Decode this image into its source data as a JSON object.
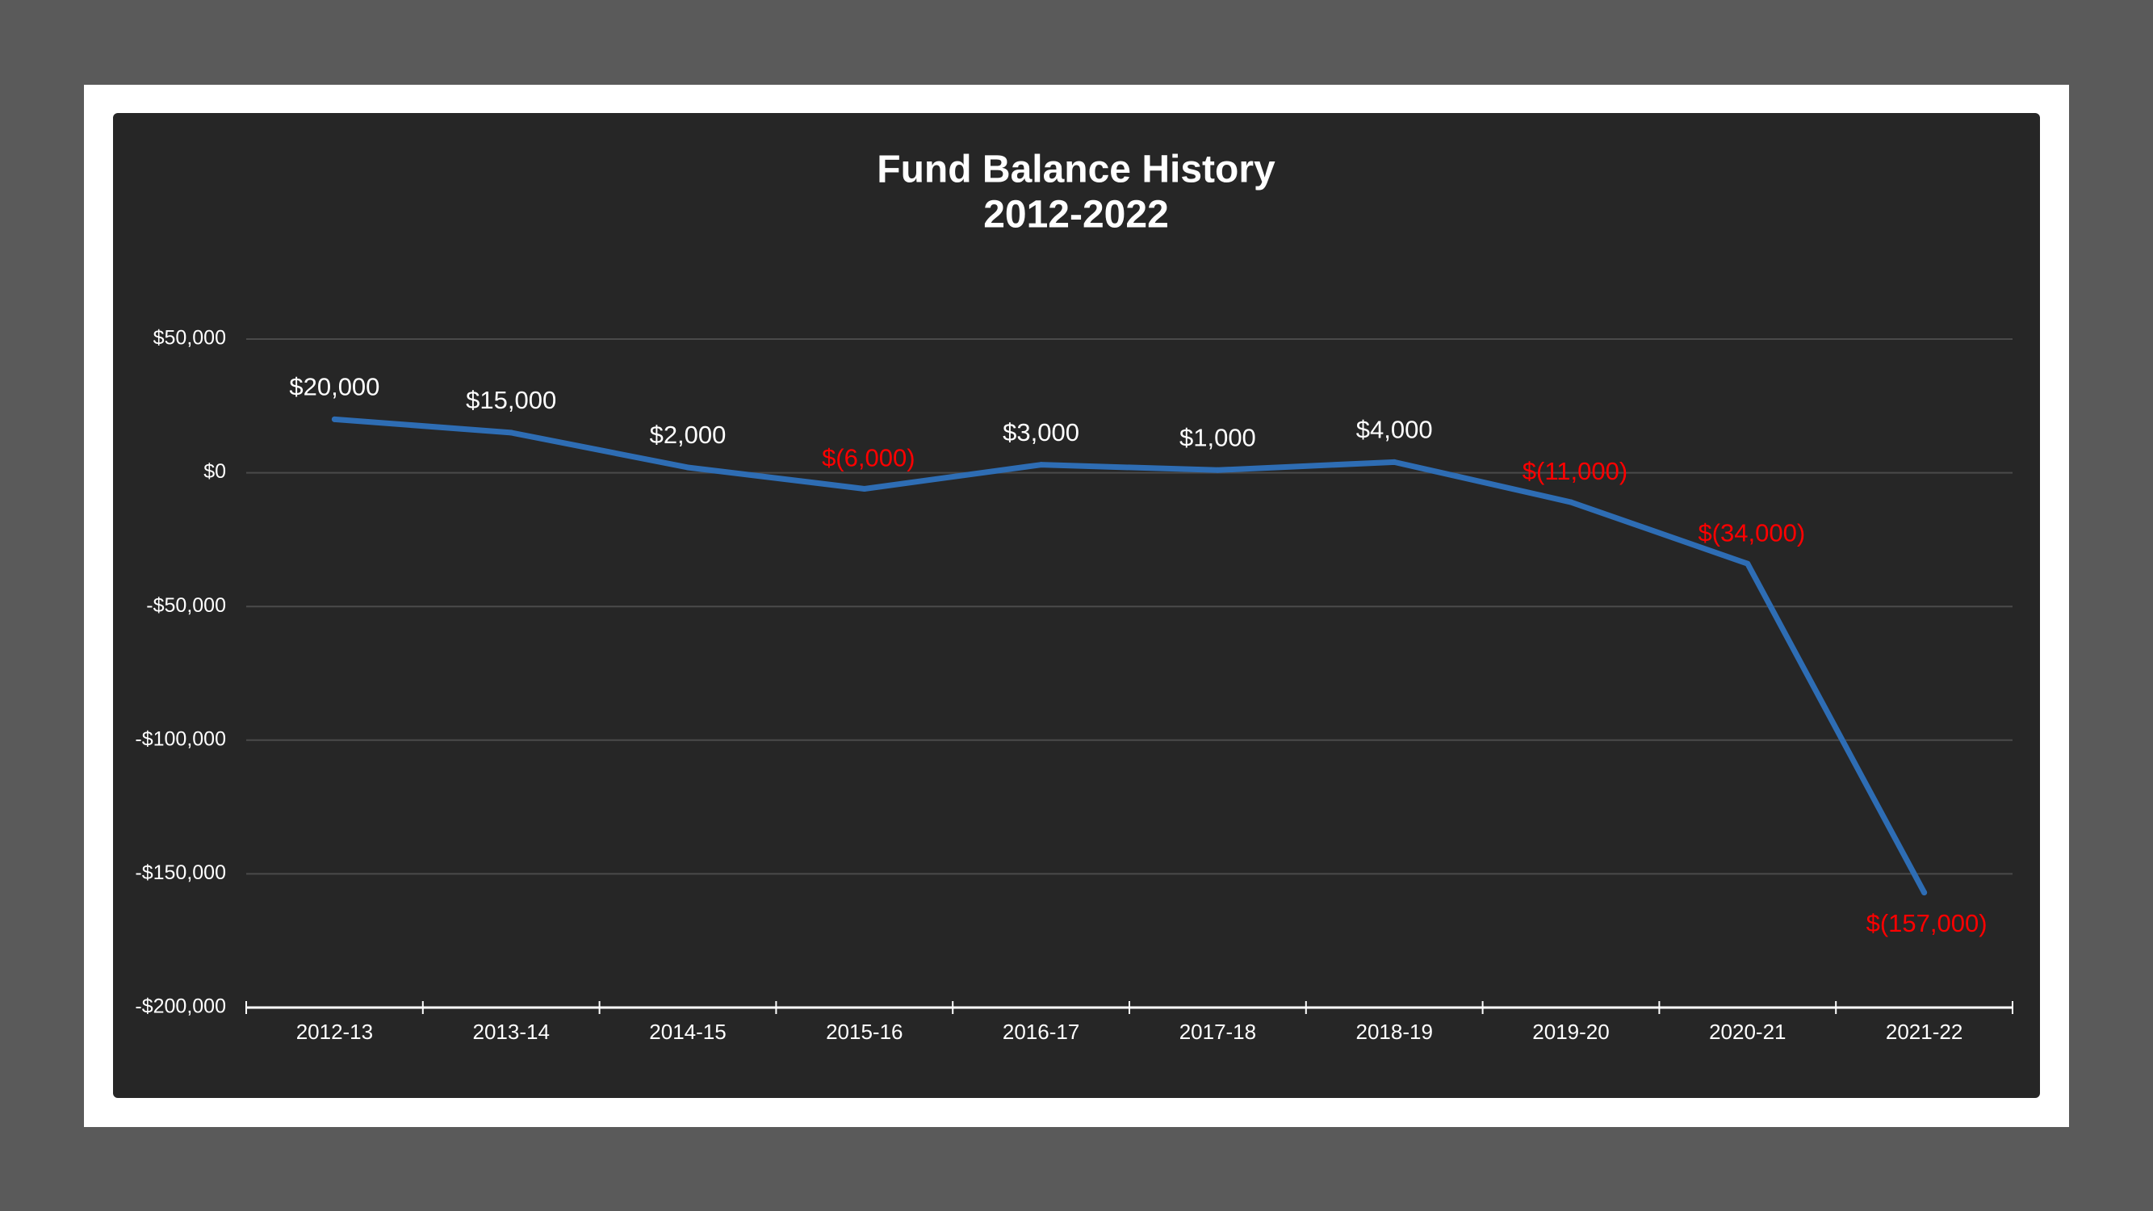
{
  "chart_data": {
    "type": "line",
    "title": [
      "Fund Balance History",
      "2012-2022"
    ],
    "categories": [
      "2012-13",
      "2013-14",
      "2014-15",
      "2015-16",
      "2016-17",
      "2017-18",
      "2018-19",
      "2019-20",
      "2020-21",
      "2021-22"
    ],
    "values": [
      20000,
      15000,
      2000,
      -6000,
      3000,
      1000,
      4000,
      -11000,
      -34000,
      -157000
    ],
    "data_labels": [
      "$20,000",
      "$15,000",
      "$2,000",
      "$(6,000)",
      "$3,000",
      "$1,000",
      "$4,000",
      "$(11,000)",
      "$(34,000)",
      "$(157,000)"
    ],
    "ylim": [
      -200000,
      50000
    ],
    "y_ticks": [
      50000,
      0,
      -50000,
      -100000,
      -150000,
      -200000
    ],
    "y_tick_labels": [
      "$50,000",
      "$0",
      "-$50,000",
      "-$100,000",
      "-$150,000",
      "-$200,000"
    ],
    "xlabel": "",
    "ylabel": "",
    "grid": true,
    "legend": "none",
    "colors": {
      "line": "#2e6db4",
      "positive_label": "#ffffff",
      "negative_label": "#ff0000",
      "gridline": "#4a4a4a",
      "axis": "#ffffff",
      "panel_background": "#262626",
      "frame": "#ffffff",
      "page_background": "#5a5a5a"
    }
  }
}
